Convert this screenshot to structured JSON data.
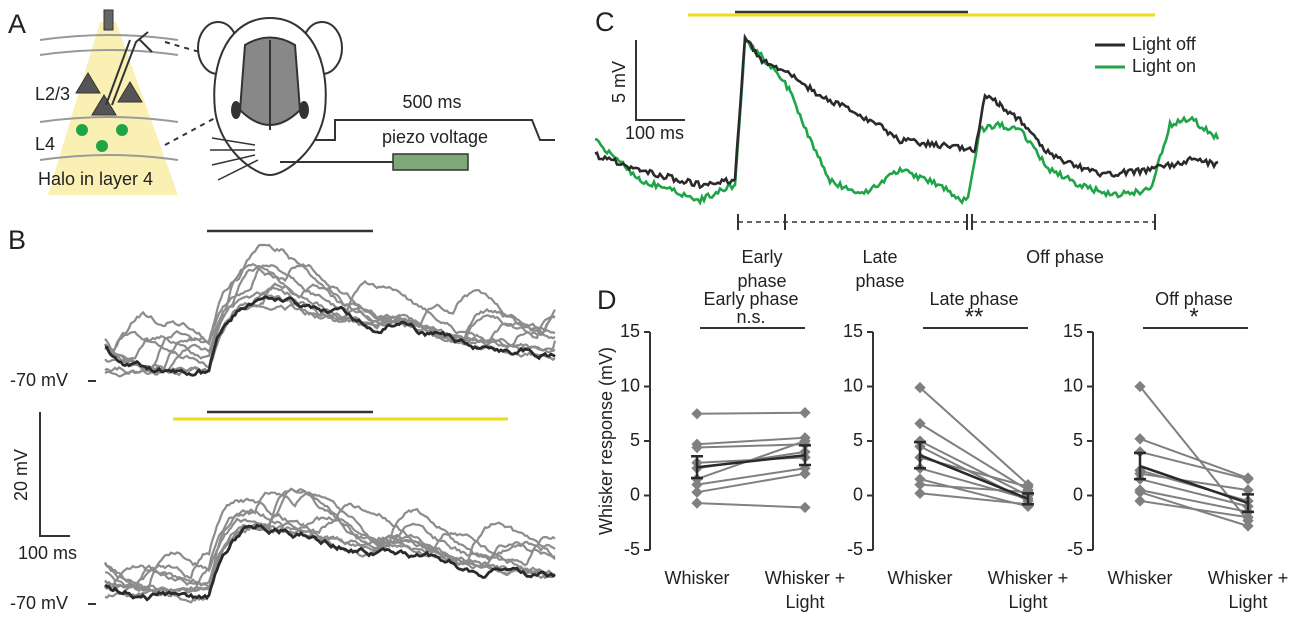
{
  "panel_labels": [
    "A",
    "B",
    "C",
    "D"
  ],
  "panel_a": {
    "layers": [
      "L2/3",
      "L4"
    ],
    "caption": "Halo in layer 4",
    "stimulus_duration": "500 ms",
    "stimulus_label": "piezo voltage"
  },
  "panel_b": {
    "baseline_labels": [
      "-70 mV",
      "-70 mV"
    ],
    "scale_y": "20 mV",
    "scale_x": "100 ms"
  },
  "panel_c": {
    "scale_y": "5 mV",
    "scale_x": "100 ms",
    "legend": [
      {
        "name": "Light off",
        "color": "#2a2a2a"
      },
      {
        "name": "Light on",
        "color": "#1fa447"
      }
    ],
    "phases": [
      "Early phase",
      "Late phase",
      "Off phase"
    ]
  },
  "chart_data": [
    {
      "type": "line",
      "title": "Early phase",
      "annotation": "n.s.",
      "y_label": "Whisker response (mV)",
      "categories": [
        "Whisker",
        "Whisker + Light"
      ],
      "ylim": [
        -5,
        15
      ],
      "yticks": [
        -5,
        0,
        5,
        10,
        15
      ],
      "series": [
        {
          "color": "#808080",
          "values": [
            7.5,
            7.6
          ]
        },
        {
          "color": "#808080",
          "values": [
            4.7,
            5.3
          ]
        },
        {
          "color": "#808080",
          "values": [
            4.4,
            4.7
          ]
        },
        {
          "color": "#808080",
          "values": [
            3.0,
            3.5
          ]
        },
        {
          "color": "#808080",
          "values": [
            2.5,
            4.0
          ]
        },
        {
          "color": "#808080",
          "values": [
            1.5,
            5.0
          ]
        },
        {
          "color": "#808080",
          "values": [
            1.0,
            2.5
          ]
        },
        {
          "color": "#808080",
          "values": [
            0.3,
            2.0
          ]
        },
        {
          "color": "#808080",
          "values": [
            -0.7,
            -1.1
          ]
        },
        {
          "color": "#2a2a2a",
          "values": [
            2.6,
            3.7
          ],
          "errors": [
            1.0,
            0.9
          ]
        }
      ]
    },
    {
      "type": "line",
      "title": "Late phase",
      "annotation": "**",
      "categories": [
        "Whisker",
        "Whisker + Light"
      ],
      "ylim": [
        -5,
        15
      ],
      "yticks": [
        -5,
        0,
        5,
        10,
        15
      ],
      "series": [
        {
          "color": "#808080",
          "values": [
            9.9,
            1.0
          ]
        },
        {
          "color": "#808080",
          "values": [
            6.6,
            0.5
          ]
        },
        {
          "color": "#808080",
          "values": [
            5.0,
            0.0
          ]
        },
        {
          "color": "#808080",
          "values": [
            4.5,
            -0.5
          ]
        },
        {
          "color": "#808080",
          "values": [
            3.5,
            0.8
          ]
        },
        {
          "color": "#808080",
          "values": [
            2.5,
            -0.3
          ]
        },
        {
          "color": "#808080",
          "values": [
            1.5,
            -1.0
          ]
        },
        {
          "color": "#808080",
          "values": [
            0.2,
            -0.8
          ]
        },
        {
          "color": "#808080",
          "values": [
            1.0,
            0.3
          ]
        },
        {
          "color": "#2a2a2a",
          "values": [
            3.7,
            -0.3
          ],
          "errors": [
            1.2,
            0.5
          ]
        }
      ]
    },
    {
      "type": "line",
      "title": "Off phase",
      "annotation": "*",
      "categories": [
        "Whisker",
        "Whisker + Light"
      ],
      "ylim": [
        -5,
        15
      ],
      "yticks": [
        -5,
        0,
        5,
        10,
        15
      ],
      "series": [
        {
          "color": "#808080",
          "values": [
            10.0,
            -2.3
          ]
        },
        {
          "color": "#808080",
          "values": [
            5.2,
            1.6
          ]
        },
        {
          "color": "#808080",
          "values": [
            4.0,
            1.5
          ]
        },
        {
          "color": "#808080",
          "values": [
            2.3,
            -0.5
          ]
        },
        {
          "color": "#808080",
          "values": [
            1.5,
            -1.0
          ]
        },
        {
          "color": "#808080",
          "values": [
            0.5,
            -1.5
          ]
        },
        {
          "color": "#808080",
          "values": [
            0.3,
            -2.8
          ]
        },
        {
          "color": "#808080",
          "values": [
            -0.5,
            -2.0
          ]
        },
        {
          "color": "#808080",
          "values": [
            2.0,
            0.5
          ]
        },
        {
          "color": "#2a2a2a",
          "values": [
            2.7,
            -0.7
          ],
          "errors": [
            1.2,
            0.8
          ]
        }
      ]
    }
  ]
}
